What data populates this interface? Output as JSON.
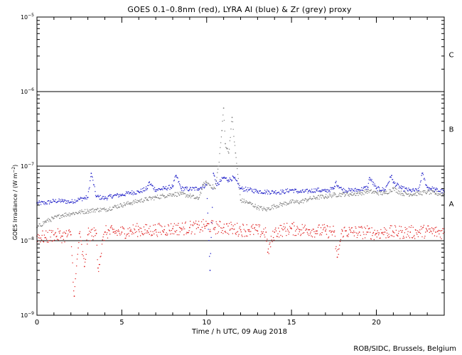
{
  "chart_data": {
    "type": "scatter",
    "title": "GOES 0.1–0.8nm (red), LYRA Al (blue) & Zr (grey) proxy",
    "xlabel": "Time / h UTC, 09 Aug 2018",
    "ylabel": {
      "main": "GOES Irradiance / (W m",
      "sup": "−2",
      "close": ")"
    },
    "credit": "ROB/SIDC, Brussels, Belgium",
    "xlim": [
      0,
      24
    ],
    "ylim": [
      1e-09,
      1e-05
    ],
    "yscale": "log",
    "x_ticks": [
      {
        "value": 0,
        "label": "0"
      },
      {
        "value": 5,
        "label": "5"
      },
      {
        "value": 10,
        "label": "10"
      },
      {
        "value": 15,
        "label": "15"
      },
      {
        "value": 20,
        "label": "20"
      }
    ],
    "y_ticks": [
      {
        "value": 1e-05,
        "base": "10",
        "exp": "−5"
      },
      {
        "value": 1e-06,
        "base": "10",
        "exp": "−6"
      },
      {
        "value": 1e-07,
        "base": "10",
        "exp": "−7"
      },
      {
        "value": 1e-08,
        "base": "10",
        "exp": "−8"
      },
      {
        "value": 1e-09,
        "base": "10",
        "exp": "−9"
      }
    ],
    "flare_levels": [
      {
        "value": 1e-06
      },
      {
        "value": 1e-07
      },
      {
        "value": 1e-08
      }
    ],
    "flare_classes": [
      {
        "label": "C",
        "value": 3.16e-06
      },
      {
        "label": "B",
        "value": 3.16e-07
      },
      {
        "label": "A",
        "value": 3.16e-08
      }
    ],
    "series": [
      {
        "color": "#2020c8",
        "points": [
          [
            0.0,
            3.2e-08
          ],
          [
            0.5,
            3.2e-08
          ],
          [
            1.0,
            3.4e-08
          ],
          [
            1.5,
            3.4e-08
          ],
          [
            2.0,
            3.3e-08
          ],
          [
            2.5,
            3.6e-08
          ],
          [
            3.0,
            3.8e-08
          ],
          [
            3.2,
            8e-08
          ],
          [
            3.5,
            3.9e-08
          ],
          [
            4.0,
            3.7e-08
          ],
          [
            4.5,
            4e-08
          ],
          [
            5.0,
            4.1e-08
          ],
          [
            5.5,
            4.4e-08
          ],
          [
            6.0,
            4.5e-08
          ],
          [
            6.5,
            5e-08
          ],
          [
            6.6,
            6e-08
          ],
          [
            7.0,
            4.8e-08
          ],
          [
            7.5,
            5e-08
          ],
          [
            8.0,
            5.3e-08
          ],
          [
            8.2,
            7.5e-08
          ],
          [
            8.5,
            5e-08
          ],
          [
            9.0,
            4.9e-08
          ],
          [
            9.5,
            5e-08
          ],
          [
            10.0,
            5.6e-08
          ],
          [
            10.2,
            4e-09
          ],
          [
            10.4,
            8e-08
          ],
          [
            10.6,
            5.5e-08
          ],
          [
            11.0,
            7e-08
          ],
          [
            11.3,
            6.5e-08
          ],
          [
            11.6,
            7e-08
          ],
          [
            12.0,
            5e-08
          ],
          [
            12.5,
            4.8e-08
          ],
          [
            13.0,
            4.6e-08
          ],
          [
            13.5,
            4.5e-08
          ],
          [
            14.0,
            4.5e-08
          ],
          [
            14.5,
            4.5e-08
          ],
          [
            15.0,
            4.8e-08
          ],
          [
            15.5,
            4.5e-08
          ],
          [
            16.0,
            4.6e-08
          ],
          [
            16.5,
            4.8e-08
          ],
          [
            17.0,
            4.6e-08
          ],
          [
            17.5,
            5e-08
          ],
          [
            17.6,
            6e-08
          ],
          [
            18.0,
            4.8e-08
          ],
          [
            18.5,
            4.7e-08
          ],
          [
            19.0,
            4.8e-08
          ],
          [
            19.5,
            5.2e-08
          ],
          [
            19.6,
            7e-08
          ],
          [
            20.0,
            5e-08
          ],
          [
            20.5,
            4.8e-08
          ],
          [
            20.9,
            7.5e-08
          ],
          [
            21.0,
            6e-08
          ],
          [
            21.5,
            5e-08
          ],
          [
            22.0,
            4.7e-08
          ],
          [
            22.5,
            4.7e-08
          ],
          [
            22.7,
            8e-08
          ],
          [
            23.0,
            5.2e-08
          ],
          [
            23.5,
            4.8e-08
          ],
          [
            24.0,
            4.5e-08
          ]
        ]
      },
      {
        "color": "#808080",
        "points": [
          [
            0.0,
            1.5e-08
          ],
          [
            0.5,
            1.8e-08
          ],
          [
            1.0,
            2e-08
          ],
          [
            1.5,
            2.2e-08
          ],
          [
            2.0,
            2.3e-08
          ],
          [
            2.5,
            2.4e-08
          ],
          [
            3.0,
            2.5e-08
          ],
          [
            3.5,
            2.6e-08
          ],
          [
            4.0,
            2.6e-08
          ],
          [
            4.5,
            2.8e-08
          ],
          [
            5.0,
            3e-08
          ],
          [
            5.5,
            3.2e-08
          ],
          [
            6.0,
            3.4e-08
          ],
          [
            6.5,
            3.6e-08
          ],
          [
            7.0,
            3.8e-08
          ],
          [
            7.5,
            4e-08
          ],
          [
            8.0,
            4.2e-08
          ],
          [
            8.5,
            4.2e-08
          ],
          [
            9.0,
            4e-08
          ],
          [
            9.5,
            3.6e-08
          ],
          [
            9.8,
            5.6e-08
          ],
          [
            10.0,
            6e-08
          ],
          [
            10.5,
            5e-08
          ],
          [
            10.7,
            1e-07
          ],
          [
            10.9,
            3e-07
          ],
          [
            11.0,
            6e-07
          ],
          [
            11.1,
            2e-07
          ],
          [
            11.3,
            1.5e-07
          ],
          [
            11.5,
            4.5e-07
          ],
          [
            11.7,
            1.5e-07
          ],
          [
            12.0,
            3.5e-08
          ],
          [
            12.5,
            3.2e-08
          ],
          [
            13.0,
            2.8e-08
          ],
          [
            13.5,
            2.6e-08
          ],
          [
            14.0,
            2.9e-08
          ],
          [
            14.5,
            3.1e-08
          ],
          [
            15.0,
            3.3e-08
          ],
          [
            15.5,
            3.3e-08
          ],
          [
            16.0,
            3.6e-08
          ],
          [
            16.5,
            3.8e-08
          ],
          [
            17.0,
            3.9e-08
          ],
          [
            17.5,
            4.1e-08
          ],
          [
            18.0,
            4.2e-08
          ],
          [
            18.5,
            4.2e-08
          ],
          [
            19.0,
            4.3e-08
          ],
          [
            19.5,
            4.6e-08
          ],
          [
            20.0,
            4.4e-08
          ],
          [
            20.5,
            4.3e-08
          ],
          [
            21.0,
            5e-08
          ],
          [
            21.5,
            4.3e-08
          ],
          [
            22.0,
            4.2e-08
          ],
          [
            22.5,
            4.3e-08
          ],
          [
            23.0,
            4.5e-08
          ],
          [
            23.5,
            4.3e-08
          ],
          [
            24.0,
            4.2e-08
          ]
        ]
      },
      {
        "color": "#e02020",
        "points": [
          [
            0.0,
            1.15e-08
          ],
          [
            0.5,
            1.1e-08
          ],
          [
            1.0,
            1.2e-08
          ],
          [
            1.5,
            1.15e-08
          ],
          [
            2.0,
            1.2e-08
          ],
          [
            2.2,
            1.8e-09
          ],
          [
            2.5,
            1.25e-08
          ],
          [
            2.8,
            4.5e-09
          ],
          [
            3.0,
            1.2e-08
          ],
          [
            3.5,
            1.25e-08
          ],
          [
            3.6,
            4.3e-09
          ],
          [
            4.0,
            1.3e-08
          ],
          [
            4.5,
            1.3e-08
          ],
          [
            5.0,
            1.3e-08
          ],
          [
            5.5,
            1.35e-08
          ],
          [
            6.0,
            1.4e-08
          ],
          [
            6.5,
            1.35e-08
          ],
          [
            7.0,
            1.4e-08
          ],
          [
            7.5,
            1.4e-08
          ],
          [
            8.0,
            1.45e-08
          ],
          [
            8.5,
            1.45e-08
          ],
          [
            9.0,
            1.5e-08
          ],
          [
            9.5,
            1.5e-08
          ],
          [
            10.0,
            1.6e-08
          ],
          [
            10.5,
            1.5e-08
          ],
          [
            11.0,
            1.5e-08
          ],
          [
            11.5,
            1.45e-08
          ],
          [
            12.0,
            1.4e-08
          ],
          [
            12.5,
            1.4e-08
          ],
          [
            13.0,
            1.35e-08
          ],
          [
            13.5,
            1.3e-08
          ],
          [
            13.6,
            7e-09
          ],
          [
            14.0,
            1.3e-08
          ],
          [
            14.5,
            1.4e-08
          ],
          [
            15.0,
            1.45e-08
          ],
          [
            15.5,
            1.4e-08
          ],
          [
            16.0,
            1.4e-08
          ],
          [
            16.5,
            1.35e-08
          ],
          [
            17.0,
            1.35e-08
          ],
          [
            17.5,
            1.3e-08
          ],
          [
            17.7,
            6e-09
          ],
          [
            18.0,
            1.35e-08
          ],
          [
            18.5,
            1.3e-08
          ],
          [
            19.0,
            1.3e-08
          ],
          [
            19.5,
            1.3e-08
          ],
          [
            20.0,
            1.25e-08
          ],
          [
            20.5,
            1.3e-08
          ],
          [
            21.0,
            1.3e-08
          ],
          [
            21.5,
            1.3e-08
          ],
          [
            22.0,
            1.3e-08
          ],
          [
            22.5,
            1.3e-08
          ],
          [
            23.0,
            1.35e-08
          ],
          [
            23.5,
            1.3e-08
          ],
          [
            24.0,
            1.3e-08
          ]
        ]
      }
    ]
  }
}
